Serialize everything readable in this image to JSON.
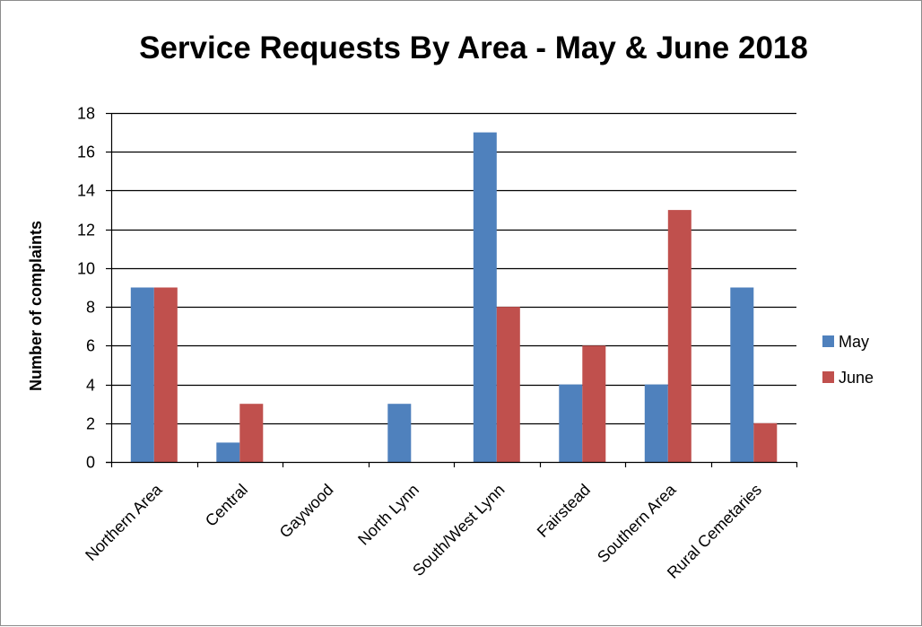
{
  "chart_data": {
    "type": "bar",
    "title": "Service Requests By Area - May & June 2018",
    "xlabel": "",
    "ylabel": "Number of complaints",
    "ylim": [
      0,
      18
    ],
    "yticks": [
      0,
      2,
      4,
      6,
      8,
      10,
      12,
      14,
      16,
      18
    ],
    "grid": true,
    "legend_position": "right",
    "categories": [
      "Northern Area",
      "Central",
      "Gaywood",
      "North Lynn",
      "South/West Lynn",
      "Fairstead",
      "Southern Area",
      "Rural Cemetaries"
    ],
    "series": [
      {
        "name": "May",
        "color": "#4f81bd",
        "values": [
          9,
          1,
          0,
          3,
          17,
          4,
          4,
          9
        ]
      },
      {
        "name": "June",
        "color": "#c0504d",
        "values": [
          9,
          3,
          0,
          0,
          8,
          6,
          13,
          2
        ]
      }
    ]
  }
}
